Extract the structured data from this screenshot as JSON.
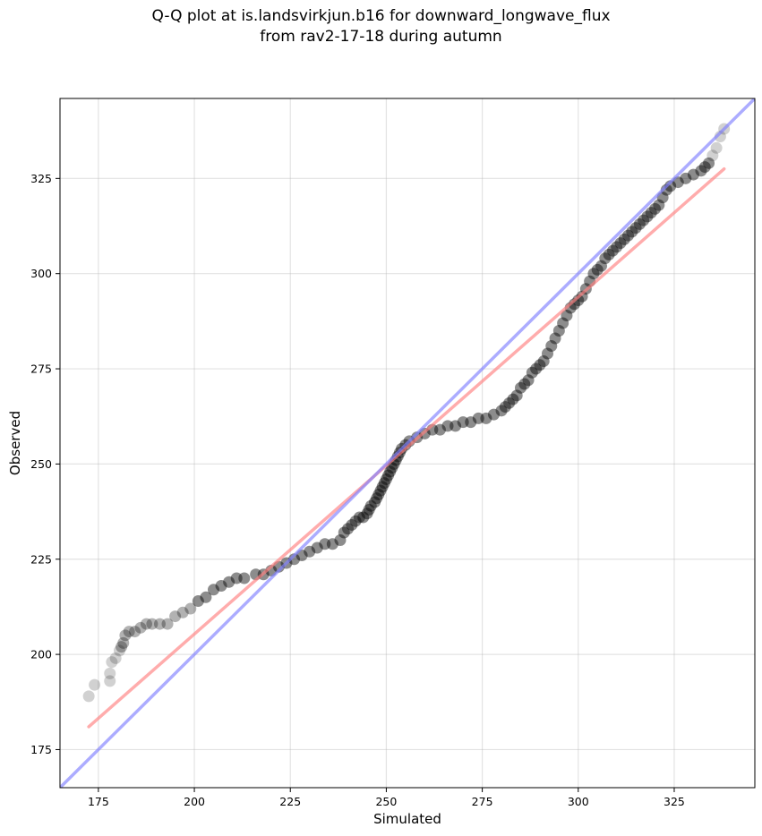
{
  "chart_data": {
    "type": "scatter",
    "title": [
      "Q-Q plot at is.landsvirkjun.b16 for downward_longwave_flux",
      "from rav2-17-18 during autumn"
    ],
    "xlabel": "Simulated",
    "ylabel": "Observed",
    "xlim": [
      165,
      346
    ],
    "ylim": [
      165,
      346
    ],
    "xticks": [
      175,
      200,
      225,
      250,
      275,
      300,
      325
    ],
    "yticks": [
      175,
      200,
      225,
      250,
      275,
      300,
      325
    ],
    "grid": true,
    "series": [
      {
        "name": "quantiles",
        "color": "#000000",
        "points": [
          [
            172.5,
            189
          ],
          [
            174,
            192
          ],
          [
            178,
            193
          ],
          [
            178,
            195
          ],
          [
            178.5,
            198
          ],
          [
            179.5,
            199
          ],
          [
            180.5,
            201
          ],
          [
            181,
            202
          ],
          [
            181.5,
            203
          ],
          [
            182,
            205
          ],
          [
            183,
            206
          ],
          [
            184.5,
            206
          ],
          [
            186,
            207
          ],
          [
            187.5,
            208
          ],
          [
            189,
            208
          ],
          [
            191,
            208
          ],
          [
            193,
            208
          ],
          [
            195,
            210
          ],
          [
            197,
            211
          ],
          [
            199,
            212
          ],
          [
            201,
            214
          ],
          [
            203,
            215
          ],
          [
            205,
            217
          ],
          [
            207,
            218
          ],
          [
            209,
            219
          ],
          [
            211,
            220
          ],
          [
            213,
            220
          ],
          [
            216,
            221
          ],
          [
            218,
            221
          ],
          [
            220,
            222
          ],
          [
            222,
            223
          ],
          [
            224,
            224
          ],
          [
            226,
            225
          ],
          [
            228,
            226
          ],
          [
            230,
            227
          ],
          [
            232,
            228
          ],
          [
            234,
            229
          ],
          [
            236,
            229
          ],
          [
            238,
            230
          ],
          [
            239,
            232
          ],
          [
            240,
            233
          ],
          [
            241,
            234
          ],
          [
            242,
            235
          ],
          [
            243,
            236
          ],
          [
            244,
            236
          ],
          [
            245,
            237
          ],
          [
            245.5,
            238
          ],
          [
            246,
            239
          ],
          [
            247,
            240
          ],
          [
            247.5,
            241
          ],
          [
            248,
            242
          ],
          [
            248.5,
            243
          ],
          [
            249,
            244
          ],
          [
            249.5,
            245
          ],
          [
            250,
            246
          ],
          [
            250.5,
            247
          ],
          [
            251,
            248
          ],
          [
            251.5,
            249
          ],
          [
            252,
            250
          ],
          [
            252.5,
            251
          ],
          [
            253,
            252
          ],
          [
            253.5,
            253
          ],
          [
            254,
            254
          ],
          [
            255,
            255
          ],
          [
            256,
            256
          ],
          [
            258,
            257
          ],
          [
            260,
            258
          ],
          [
            262,
            259
          ],
          [
            264,
            259
          ],
          [
            266,
            260
          ],
          [
            268,
            260
          ],
          [
            270,
            261
          ],
          [
            272,
            261
          ],
          [
            274,
            262
          ],
          [
            276,
            262
          ],
          [
            278,
            263
          ],
          [
            280,
            264
          ],
          [
            281,
            265
          ],
          [
            282,
            266
          ],
          [
            283,
            267
          ],
          [
            284,
            268
          ],
          [
            285,
            270
          ],
          [
            286,
            271
          ],
          [
            287,
            272
          ],
          [
            288,
            274
          ],
          [
            289,
            275
          ],
          [
            290,
            276
          ],
          [
            291,
            277
          ],
          [
            292,
            279
          ],
          [
            293,
            281
          ],
          [
            294,
            283
          ],
          [
            295,
            285
          ],
          [
            296,
            287
          ],
          [
            297,
            289
          ],
          [
            298,
            291
          ],
          [
            299,
            292
          ],
          [
            300,
            293
          ],
          [
            301,
            294
          ],
          [
            302,
            296
          ],
          [
            303,
            298
          ],
          [
            304,
            300
          ],
          [
            305,
            301
          ],
          [
            306,
            302
          ],
          [
            307,
            304
          ],
          [
            308,
            305
          ],
          [
            309,
            306
          ],
          [
            310,
            307
          ],
          [
            311,
            308
          ],
          [
            312,
            309
          ],
          [
            313,
            310
          ],
          [
            314,
            311
          ],
          [
            315,
            312
          ],
          [
            316,
            313
          ],
          [
            317,
            314
          ],
          [
            318,
            315
          ],
          [
            319,
            316
          ],
          [
            320,
            317
          ],
          [
            321,
            318
          ],
          [
            322,
            320
          ],
          [
            323,
            322
          ],
          [
            324,
            323
          ],
          [
            326,
            324
          ],
          [
            328,
            325
          ],
          [
            330,
            326
          ],
          [
            332,
            327
          ],
          [
            333,
            328
          ],
          [
            334,
            329
          ],
          [
            335,
            331
          ],
          [
            336,
            333
          ],
          [
            337,
            336
          ],
          [
            338,
            338
          ]
        ]
      }
    ],
    "lines": [
      {
        "name": "fit",
        "color": "#ff7f7f",
        "from": [
          172.5,
          181
        ],
        "to": [
          338,
          327.5
        ]
      },
      {
        "name": "identity",
        "color": "#7f7fff",
        "from": [
          165,
          165
        ],
        "to": [
          346,
          346
        ]
      }
    ]
  }
}
